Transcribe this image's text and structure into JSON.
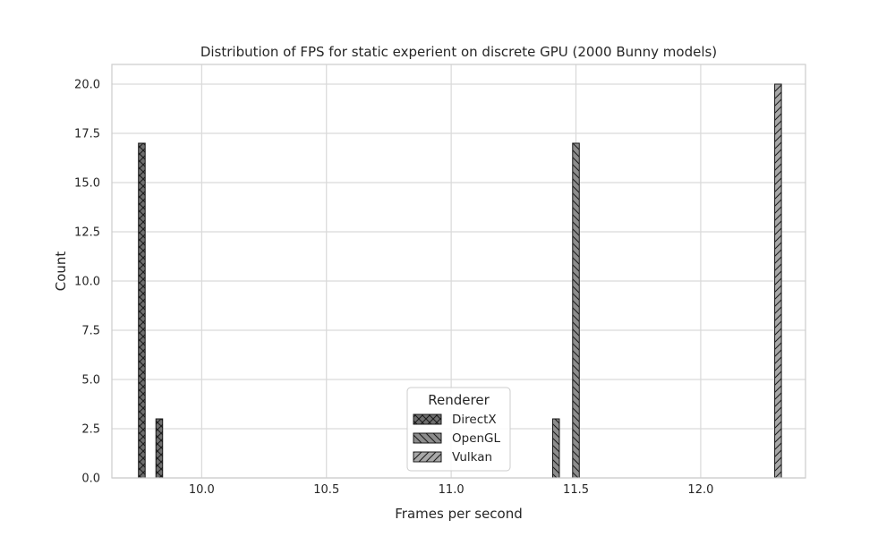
{
  "chart_data": {
    "type": "bar",
    "title": "Distribution of FPS for static experient on discrete GPU (2000 Bunny models)",
    "xlabel": "Frames per second",
    "ylabel": "Count",
    "xlim": [
      9.64,
      12.42
    ],
    "ylim": [
      0,
      21
    ],
    "xticks": [
      10.0,
      10.5,
      11.0,
      11.5,
      12.0
    ],
    "xtick_labels": [
      "10.0",
      "10.5",
      "11.0",
      "11.5",
      "12.0"
    ],
    "yticks": [
      0,
      2.5,
      5,
      7.5,
      10,
      12.5,
      15,
      17.5,
      20
    ],
    "ytick_labels": [
      "0.0",
      "2.5",
      "5.0",
      "7.5",
      "10.0",
      "12.5",
      "15.0",
      "17.5",
      "20.0"
    ],
    "bar_width": 0.027,
    "grid": true,
    "legend": {
      "title": "Renderer",
      "position": "lower-center"
    },
    "series": [
      {
        "name": "DirectX",
        "color": "#6e6e6e",
        "hatch": "x",
        "bars": [
          {
            "x": 9.76,
            "value": 17
          },
          {
            "x": 9.83,
            "value": 3
          }
        ]
      },
      {
        "name": "OpenGL",
        "color": "#8c8c8c",
        "hatch": "\\",
        "bars": [
          {
            "x": 11.42,
            "value": 3
          },
          {
            "x": 11.5,
            "value": 17
          }
        ]
      },
      {
        "name": "Vulkan",
        "color": "#a8a8a8",
        "hatch": "/",
        "bars": [
          {
            "x": 12.31,
            "value": 20
          }
        ]
      }
    ]
  }
}
